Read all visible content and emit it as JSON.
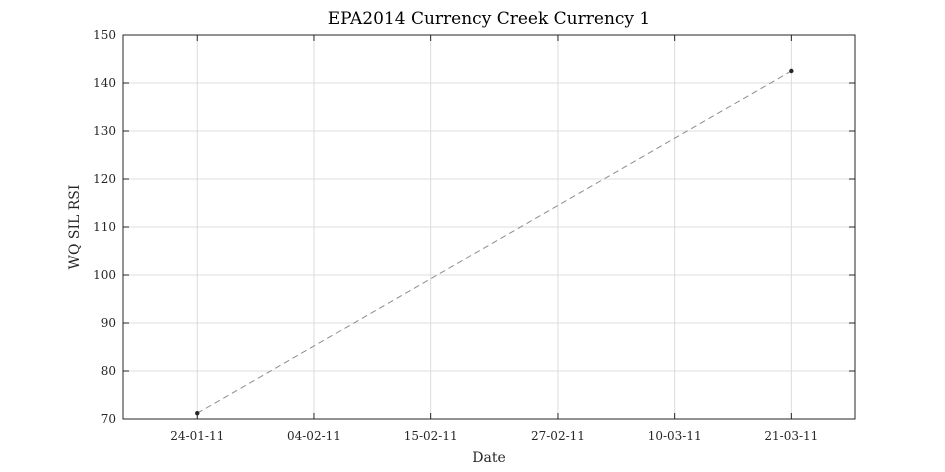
{
  "chart_data": {
    "type": "line",
    "title": "EPA2014 Currency Creek Currency 1",
    "xlabel": "Date",
    "ylabel": "WQ SIL RSI",
    "xlim": [
      "2011-01-17",
      "2011-03-27"
    ],
    "ylim": [
      70,
      150
    ],
    "x_ticks": [
      {
        "date": "2011-01-24",
        "label": "24-01-11"
      },
      {
        "date": "2011-02-04",
        "label": "04-02-11"
      },
      {
        "date": "2011-02-15",
        "label": "15-02-11"
      },
      {
        "date": "2011-02-27",
        "label": "27-02-11"
      },
      {
        "date": "2011-03-10",
        "label": "10-03-11"
      },
      {
        "date": "2011-03-21",
        "label": "21-03-11"
      }
    ],
    "y_ticks": [
      70,
      80,
      90,
      100,
      110,
      120,
      130,
      140,
      150
    ],
    "grid": true,
    "series": [
      {
        "points": [
          {
            "x": "2011-01-24",
            "y": 71.2
          },
          {
            "x": "2011-03-21",
            "y": 142.5
          }
        ]
      }
    ]
  }
}
